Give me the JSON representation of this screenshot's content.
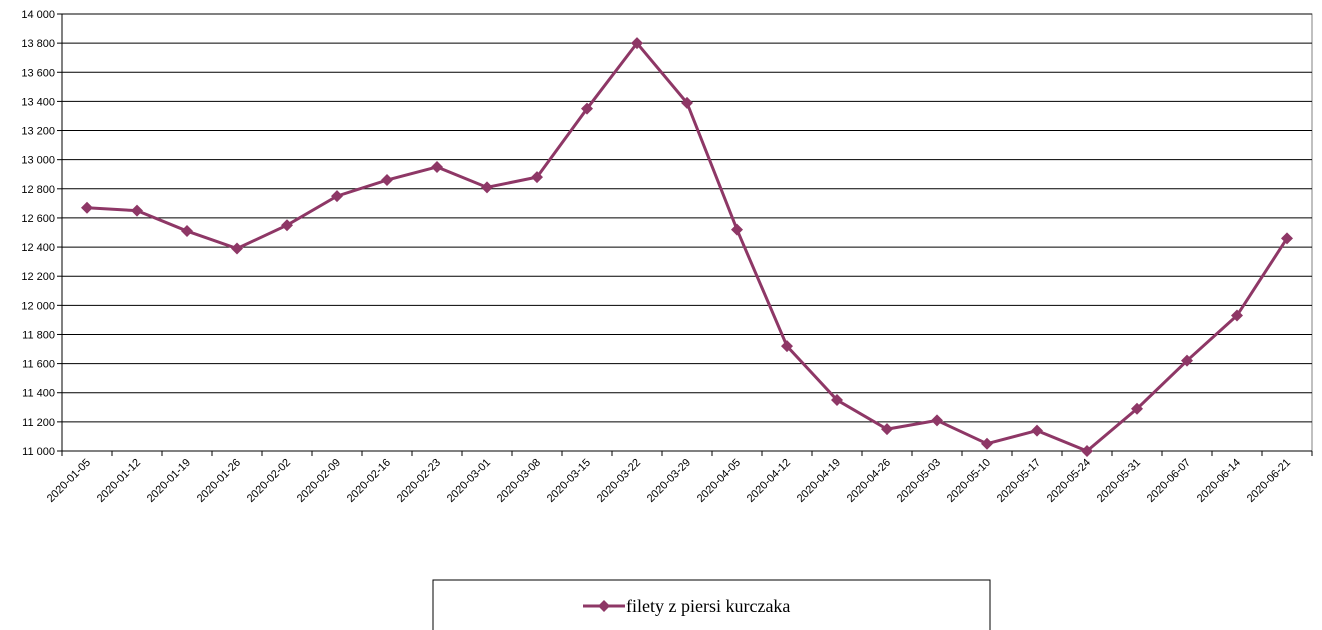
{
  "chart_data": {
    "type": "line",
    "categories": [
      "2020-01-05",
      "2020-01-12",
      "2020-01-19",
      "2020-01-26",
      "2020-02-02",
      "2020-02-09",
      "2020-02-16",
      "2020-02-23",
      "2020-03-01",
      "2020-03-08",
      "2020-03-15",
      "2020-03-22",
      "2020-03-29",
      "2020-04-05",
      "2020-04-12",
      "2020-04-19",
      "2020-04-26",
      "2020-05-03",
      "2020-05-10",
      "2020-05-17",
      "2020-05-24",
      "2020-05-31",
      "2020-06-07",
      "2020-06-14",
      "2020-06-21"
    ],
    "series": [
      {
        "name": "filety z piersi kurczaka",
        "color": "#8e3766",
        "values": [
          12670,
          12650,
          12510,
          12390,
          12550,
          12750,
          12860,
          12950,
          12810,
          12880,
          13350,
          13800,
          13390,
          12520,
          11720,
          11350,
          11150,
          11210,
          11050,
          11140,
          11000,
          11290,
          11620,
          11930,
          12460
        ]
      }
    ],
    "ylim": [
      11000,
      14000
    ],
    "yticks": [
      {
        "value": 11000,
        "label": "11 000"
      },
      {
        "value": 11200,
        "label": "11 200"
      },
      {
        "value": 11400,
        "label": "11 400"
      },
      {
        "value": 11600,
        "label": "11 600"
      },
      {
        "value": 11800,
        "label": "11 800"
      },
      {
        "value": 12000,
        "label": "12 000"
      },
      {
        "value": 12200,
        "label": "12 200"
      },
      {
        "value": 12400,
        "label": "12 400"
      },
      {
        "value": 12600,
        "label": "12 600"
      },
      {
        "value": 12800,
        "label": "12 800"
      },
      {
        "value": 13000,
        "label": "13 000"
      },
      {
        "value": 13200,
        "label": "13 200"
      },
      {
        "value": 13400,
        "label": "13 400"
      },
      {
        "value": 13600,
        "label": "13 600"
      },
      {
        "value": 13800,
        "label": "13 800"
      },
      {
        "value": 14000,
        "label": "14 000"
      }
    ],
    "grid": true,
    "legend": "bottom"
  }
}
